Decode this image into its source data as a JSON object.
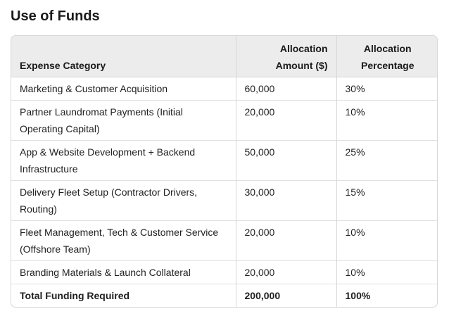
{
  "page": {
    "title": "Use of Funds"
  },
  "table": {
    "headers": {
      "category": "Expense Category",
      "amount_line1": "Allocation",
      "amount_line2": "Amount ($)",
      "percent_line1": "Allocation",
      "percent_line2": "Percentage"
    },
    "rows": [
      {
        "category": "Marketing & Customer Acquisition",
        "amount": "60,000",
        "percent": "30%"
      },
      {
        "category": "Partner Laundromat Payments (Initial Operating Capital)",
        "amount": "20,000",
        "percent": "10%"
      },
      {
        "category": "App & Website Development + Backend Infrastructure",
        "amount": "50,000",
        "percent": "25%"
      },
      {
        "category": "Delivery Fleet Setup (Contractor Drivers, Routing)",
        "amount": "30,000",
        "percent": "15%"
      },
      {
        "category": "Fleet Management, Tech & Customer Service (Offshore Team)",
        "amount": "20,000",
        "percent": "10%"
      },
      {
        "category": "Branding Materials & Launch Collateral",
        "amount": "20,000",
        "percent": "10%"
      }
    ],
    "total": {
      "category": "Total Funding Required",
      "amount": "200,000",
      "percent": "100%"
    }
  }
}
